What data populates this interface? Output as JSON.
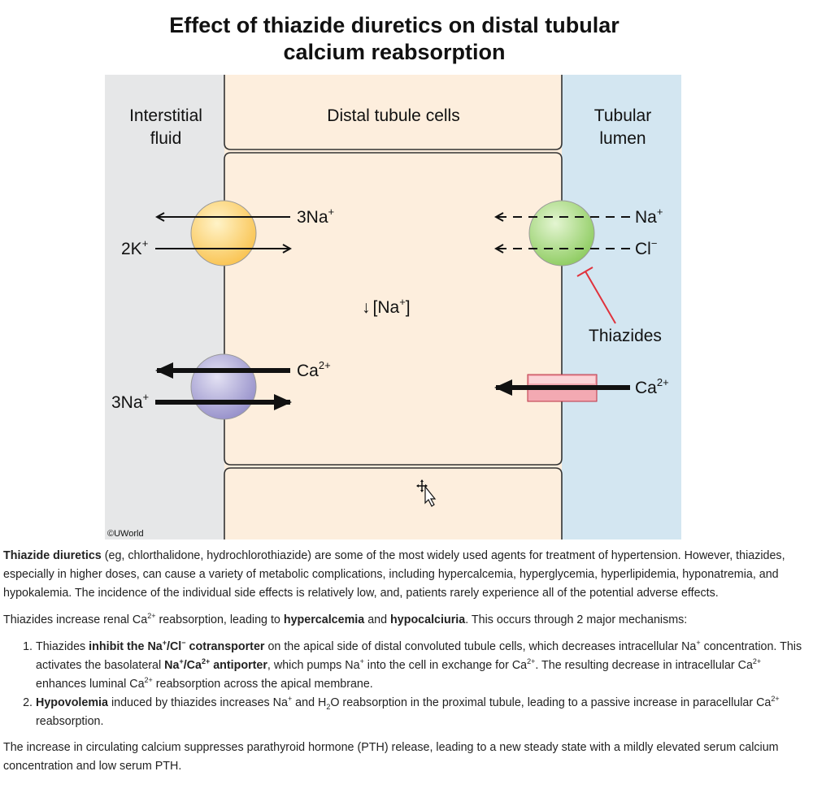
{
  "figure": {
    "title_line1": "Effect of thiazide diuretics on distal tubular",
    "title_line2": "calcium reabsorption",
    "interstitial_label_line1": "Interstitial",
    "interstitial_label_line2": "fluid",
    "cells_label": "Distal tubule cells",
    "lumen_label_line1": "Tubular",
    "lumen_label_line2": "lumen",
    "pump_out_label": "3Na",
    "pump_out_sup": "+",
    "pump_in_label": "2K",
    "pump_in_sup": "+",
    "intracellular_na_label": "[Na",
    "intracellular_na_sup": "+",
    "intracellular_na_close": "]",
    "decrease_arrow": "↓",
    "cotransporter_na_label": "Na",
    "cotransporter_na_sup": "+",
    "cotransporter_cl_label": "Cl",
    "cotransporter_cl_sup": "−",
    "thiazides_label": "Thiazides",
    "antiporter_ca_label": "Ca",
    "antiporter_ca_sup": "2+",
    "antiporter_na_label": "3Na",
    "antiporter_na_sup": "+",
    "channel_ca_label": "Ca",
    "channel_ca_sup": "2+",
    "copyright": "©UWorld",
    "colors": {
      "interstitial": "#e6e7e8",
      "cells": "#fdeedd",
      "lumen": "#d3e6f1",
      "na_k_pump": "#ffd36b",
      "na_cl_cotransporter": "#9fd37a",
      "na_ca_antiporter": "#a9a4d4",
      "ca_channel": "#f3a9b2",
      "thiazide_inhibition": "#e0323c"
    }
  },
  "text": {
    "p1_bold": "Thiazide diuretics",
    "p1_rest": " (eg, chlorthalidone, hydrochlorothiazide) are some of the most widely used agents for treatment of hypertension.  However, thiazides, especially in higher doses, can cause a variety of metabolic complications, including hypercalcemia, hyperglycemia, hyperlipidemia, hyponatremia, and hypokalemia.  The incidence of the individual side effects is relatively low, and, patients rarely experience all of the potential adverse effects.",
    "p2_a": "Thiazides increase renal Ca",
    "p2_sup": "2+",
    "p2_b": " reabsorption, leading to ",
    "p2_bold1": "hypercalcemia",
    "p2_c": " and ",
    "p2_bold2": "hypocalciuria",
    "p2_d": ".  This occurs through 2 major mechanisms:",
    "li1_a": "Thiazides ",
    "li1_bold1": "inhibit the Na",
    "li1_bold1_sup": "+",
    "li1_bold1_b": "/Cl",
    "li1_bold1_sup2": "−",
    "li1_bold1_c": " cotransporter",
    "li1_b": " on the apical side of distal convoluted tubule cells, which decreases intracellular Na",
    "li1_sup1": "+",
    "li1_c": " concentration.  This activates the basolateral ",
    "li1_bold2": "Na",
    "li1_bold2_sup": "+",
    "li1_bold2_b": "/Ca",
    "li1_bold2_sup2": "2+",
    "li1_bold2_c": " antiporter",
    "li1_d": ", which pumps Na",
    "li1_sup2": "+",
    "li1_e": " into the cell in exchange for Ca",
    "li1_sup3": "2+",
    "li1_f": ".  The resulting decrease in intracellular Ca",
    "li1_sup4": "2+",
    "li1_g": " enhances luminal Ca",
    "li1_sup5": "2+",
    "li1_h": " reabsorption across the apical membrane.",
    "li2_bold": "Hypovolemia",
    "li2_a": " induced by thiazides increases Na",
    "li2_sup1": "+",
    "li2_b": " and H",
    "li2_sub": "2",
    "li2_c": "O reabsorption in the proximal tubule, leading to a passive increase in paracellular Ca",
    "li2_sup2": "2+",
    "li2_d": " reabsorption.",
    "p3": "The increase in circulating calcium suppresses parathyroid hormone (PTH) release, leading to a new steady state with a mildly elevated serum calcium concentration and low serum PTH."
  }
}
